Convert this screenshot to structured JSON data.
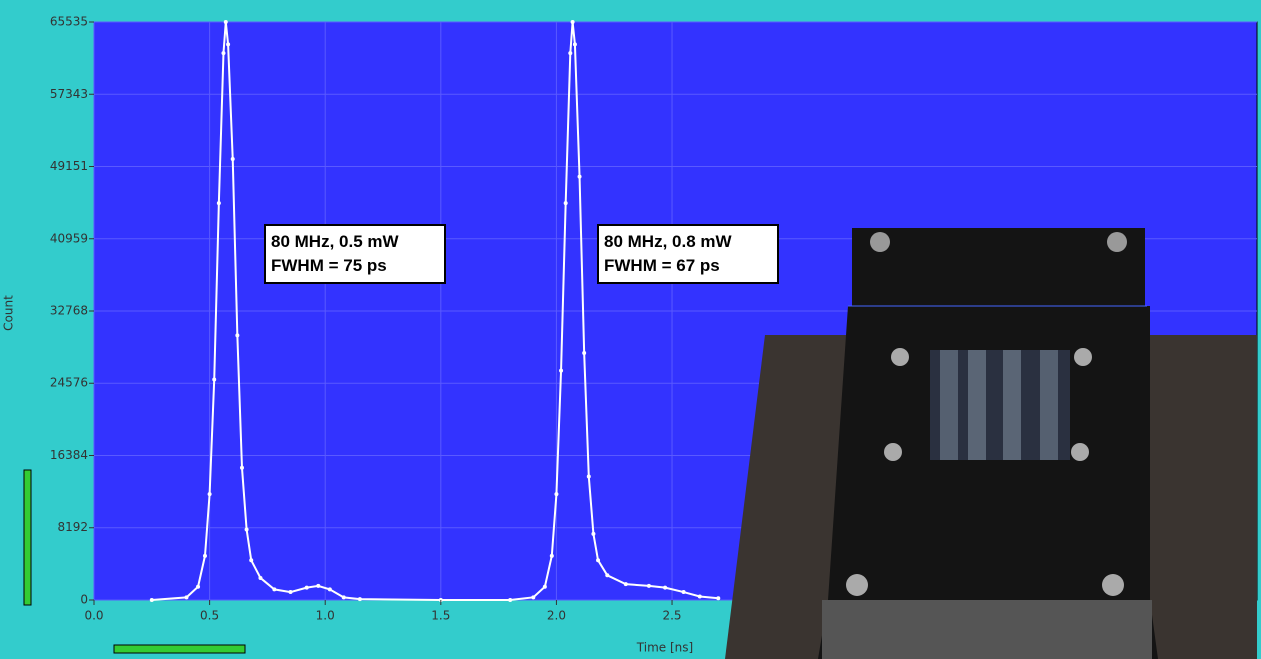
{
  "chart_data": {
    "type": "line",
    "x_label": "Time [ns]",
    "y_label": "Count",
    "xlim": [
      0,
      5.03
    ],
    "ylim": [
      0,
      65535
    ],
    "xticks": [
      {
        "value": 0,
        "label": "0.0"
      },
      0.5,
      {
        "value": 1,
        "label": "1.0"
      },
      1.5,
      {
        "value": 2,
        "label": "2.0"
      },
      2.5
    ],
    "yticks": [
      0,
      8192,
      16384,
      24576,
      32768,
      40959,
      49151,
      57343,
      65535
    ],
    "grid": true,
    "series": [
      {
        "color": "#ffffff",
        "x": [
          0.25,
          0.4,
          0.45,
          0.48,
          0.5,
          0.52,
          0.54,
          0.56,
          0.57,
          0.58,
          0.6,
          0.62,
          0.64,
          0.66,
          0.68,
          0.72,
          0.78,
          0.85,
          0.92,
          0.97,
          1.02,
          1.08,
          1.15,
          1.5,
          1.8,
          1.9,
          1.95,
          1.98,
          2.0,
          2.02,
          2.04,
          2.06,
          2.07,
          2.08,
          2.1,
          2.12,
          2.14,
          2.16,
          2.18,
          2.22,
          2.3,
          2.4,
          2.47,
          2.55,
          2.62,
          2.7
        ],
        "values": [
          0,
          300,
          1500,
          5000,
          12000,
          25000,
          45000,
          62000,
          65535,
          63000,
          50000,
          30000,
          15000,
          8000,
          4500,
          2500,
          1200,
          900,
          1400,
          1600,
          1200,
          300,
          100,
          0,
          0,
          300,
          1500,
          5000,
          12000,
          26000,
          45000,
          62000,
          65535,
          63000,
          48000,
          28000,
          14000,
          7500,
          4500,
          2800,
          1800,
          1600,
          1400,
          900,
          400,
          200
        ]
      }
    ],
    "annotations": [
      {
        "lines": [
          "80 MHz, 0.5 mW",
          "FWHM = 75 ps"
        ]
      },
      {
        "lines": [
          "80 MHz, 0.8 mW",
          "FWHM = 67 ps"
        ]
      }
    ]
  }
}
